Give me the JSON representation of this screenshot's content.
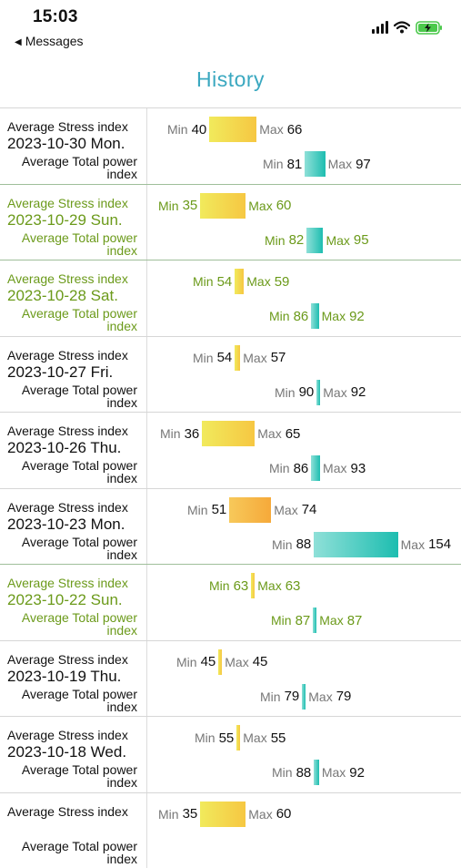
{
  "status": {
    "time": "15:03",
    "back_label": "Messages",
    "icons": [
      "signal-icon",
      "wifi-icon",
      "battery-charging-icon"
    ]
  },
  "title": "History",
  "labels": {
    "stress": "Average Stress index",
    "power": "Average Total power index",
    "min": "Min",
    "max": "Max"
  },
  "colors": {
    "title": "#3aa8c0",
    "weekend_text": "#6b9a1a",
    "stress_bar": "#f3d84c",
    "stress_bar_high": "#f6b33f",
    "power_bar": "#2cc2b4"
  },
  "rows": [
    {
      "date": "2023-10-30 Mon.",
      "weekend": false,
      "stress_min": "40",
      "stress_max": "66",
      "power_min": "81",
      "power_max": "97"
    },
    {
      "date": "2023-10-29 Sun.",
      "weekend": true,
      "stress_min": "35",
      "stress_max": "60",
      "power_min": "82",
      "power_max": "95"
    },
    {
      "date": "2023-10-28 Sat.",
      "weekend": true,
      "stress_min": "54",
      "stress_max": "59",
      "power_min": "86",
      "power_max": "92"
    },
    {
      "date": "2023-10-27 Fri.",
      "weekend": false,
      "stress_min": "54",
      "stress_max": "57",
      "power_min": "90",
      "power_max": "92"
    },
    {
      "date": "2023-10-26 Thu.",
      "weekend": false,
      "stress_min": "36",
      "stress_max": "65",
      "power_min": "86",
      "power_max": "93"
    },
    {
      "date": "2023-10-23 Mon.",
      "weekend": false,
      "stress_min": "51",
      "stress_max": "74",
      "power_min": "88",
      "power_max": "154"
    },
    {
      "date": "2023-10-22 Sun.",
      "weekend": true,
      "stress_min": "63",
      "stress_max": "63",
      "power_min": "87",
      "power_max": "87"
    },
    {
      "date": "2023-10-19 Thu.",
      "weekend": false,
      "stress_min": "45",
      "stress_max": "45",
      "power_min": "79",
      "power_max": "79"
    },
    {
      "date": "2023-10-18 Wed.",
      "weekend": false,
      "stress_min": "55",
      "stress_max": "55",
      "power_min": "88",
      "power_max": "92"
    },
    {
      "date": "",
      "weekend": false,
      "stress_min": "35",
      "stress_max": "60",
      "power_min": "",
      "power_max": ""
    }
  ]
}
